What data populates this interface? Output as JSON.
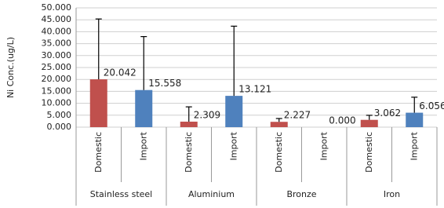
{
  "chart_data": {
    "type": "bar",
    "ylabel": "Ni Conc.(ug/L)",
    "groups": [
      "Stainless steel",
      "Aluminium",
      "Bronze",
      "Iron"
    ],
    "categories": [
      "Domestic",
      "Import",
      "Domestic",
      "Import",
      "Domestic",
      "Import",
      "Domestic",
      "Import"
    ],
    "values": [
      20.042,
      15.558,
      2.309,
      13.121,
      2.227,
      0,
      3.062,
      6.056
    ],
    "value_labels": [
      "20.042",
      "15.558",
      "2.309",
      "13.121",
      "2.227",
      "0.000",
      "3.062",
      "6.056"
    ],
    "errors": [
      25.3,
      22.4,
      6.2,
      29.2,
      1.4,
      0,
      1.9,
      6.5
    ],
    "bar_colors": [
      "#c0504d",
      "#4f81bd",
      "#c0504d",
      "#4f81bd",
      "#c0504d",
      "#4f81bd",
      "#c0504d",
      "#4f81bd"
    ],
    "ylim": [
      0,
      50
    ],
    "yticks": [
      {
        "value": 0,
        "label": "0.000"
      },
      {
        "value": 5,
        "label": "5.000"
      },
      {
        "value": 10,
        "label": "10.000"
      },
      {
        "value": 15,
        "label": "15.000"
      },
      {
        "value": 20,
        "label": "20.000"
      },
      {
        "value": 25,
        "label": "25.000"
      },
      {
        "value": 30,
        "label": "30.000"
      },
      {
        "value": 35,
        "label": "35.000"
      },
      {
        "value": 40,
        "label": "40.000"
      },
      {
        "value": 45,
        "label": "45.000"
      },
      {
        "value": 50,
        "label": "50.000"
      }
    ],
    "grid": true
  }
}
